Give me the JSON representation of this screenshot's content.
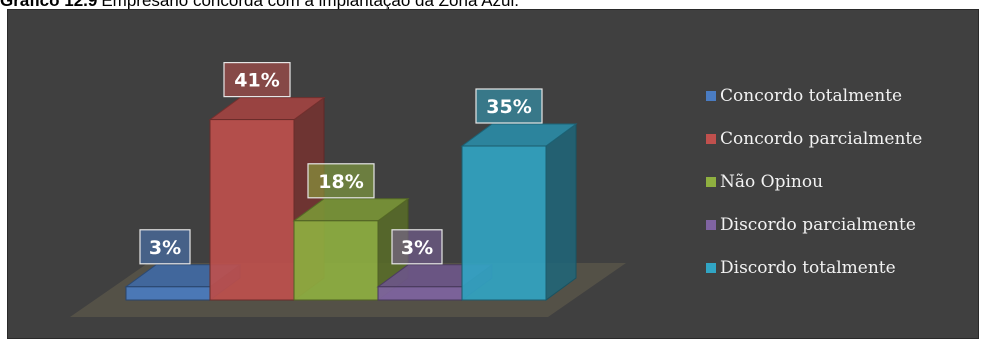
{
  "caption": {
    "number": "Gráfico 12.9",
    "text": "Empresário concorda com a implantação da Zona Azul."
  },
  "chart_data": {
    "type": "bar",
    "three_d": true,
    "categories": [
      "Concordo totalmente",
      "Concordo parcialmente",
      "Não Opinou",
      "Discordo parcialmente",
      "Discordo totalmente"
    ],
    "values": [
      3,
      41,
      18,
      3,
      35
    ],
    "data_labels": [
      "3%",
      "41%",
      "18%",
      "3%",
      "35%"
    ],
    "colors": [
      "#4a7cc2",
      "#c0504d",
      "#8fb040",
      "#8064a2",
      "#31a5c4"
    ],
    "legend_position": "right",
    "grid": false,
    "background": "#404040"
  }
}
